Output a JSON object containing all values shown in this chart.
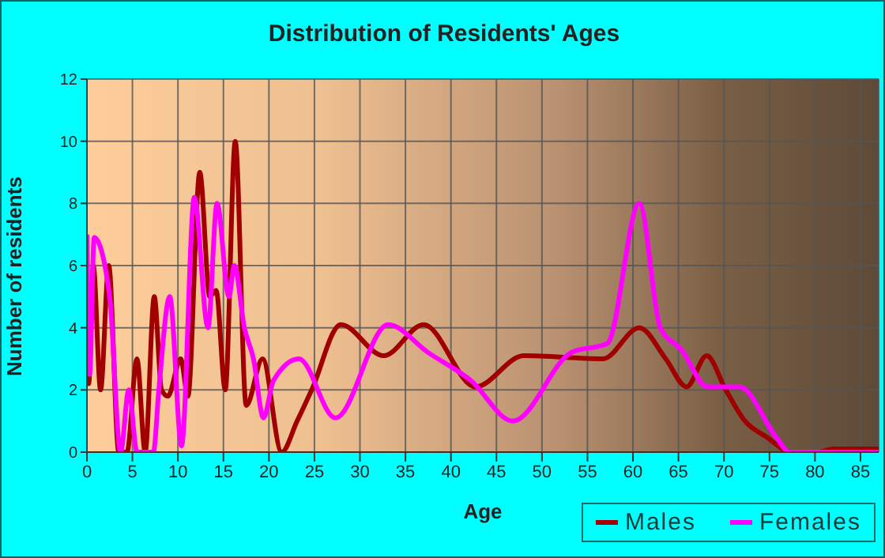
{
  "chart_data": {
    "type": "line",
    "title": "Distribution of Residents' Ages",
    "xlabel": "Age",
    "ylabel": "Number of residents",
    "xlim": [
      0,
      87
    ],
    "xticks": [
      0,
      5,
      10,
      15,
      20,
      25,
      30,
      35,
      40,
      45,
      50,
      55,
      60,
      65,
      70,
      75,
      80,
      85
    ],
    "ylim": [
      0,
      12
    ],
    "yticks": [
      0,
      2,
      4,
      6,
      8,
      10,
      12
    ],
    "grid": true,
    "legend": "bottom right",
    "marker": "none",
    "line_style": "solid",
    "series": [
      {
        "name": "Males",
        "color": "#a00000",
        "x": [
          0,
          0.2,
          0.7,
          1.5,
          2.4,
          3.5,
          4.4,
          5.5,
          6.4,
          7.4,
          8.2,
          8.9,
          10.3,
          11.1,
          12.4,
          13.5,
          14.2,
          15.2,
          16.3,
          17.5,
          19.3,
          21.4,
          23.1,
          24.7,
          27.9,
          32.6,
          37,
          42.7,
          48,
          56.7,
          60.7,
          63.6,
          65.9,
          68.1,
          70.2,
          72.3,
          74.6,
          77.5,
          80.3,
          82,
          87
        ],
        "values": [
          5,
          2.2,
          6,
          2,
          6,
          0,
          0,
          3,
          0,
          5,
          2,
          1.8,
          3,
          1.8,
          9,
          5,
          5.2,
          2,
          10,
          1.5,
          3,
          0,
          1,
          2,
          4.1,
          3.1,
          4.1,
          2.1,
          3.1,
          3,
          4,
          3,
          2.1,
          3.1,
          2,
          1,
          0.5,
          0,
          0,
          0.1,
          0.1
        ]
      },
      {
        "name": "Females",
        "color": "#ff00ff",
        "x": [
          0,
          0.3,
          0.8,
          2.5,
          3.7,
          4.6,
          5.5,
          7.3,
          7.9,
          9.1,
          10.4,
          11.8,
          13.3,
          14.3,
          15.6,
          16.2,
          17.3,
          18.3,
          19.4,
          20.5,
          23.3,
          27.3,
          33.1,
          37.5,
          42.2,
          46.8,
          53.2,
          57.2,
          60.7,
          63,
          65.3,
          68.2,
          71.7,
          75.7,
          77.2,
          87
        ],
        "values": [
          7,
          2.5,
          6.9,
          5,
          0,
          2,
          0,
          0,
          2,
          5,
          0.2,
          8.2,
          4,
          8,
          5,
          6,
          4,
          3,
          1.1,
          2.3,
          3,
          1.1,
          4.1,
          3.2,
          2.3,
          1,
          3.2,
          3.5,
          8,
          4,
          3.3,
          2.1,
          2.1,
          0.5,
          0,
          0
        ]
      }
    ]
  }
}
